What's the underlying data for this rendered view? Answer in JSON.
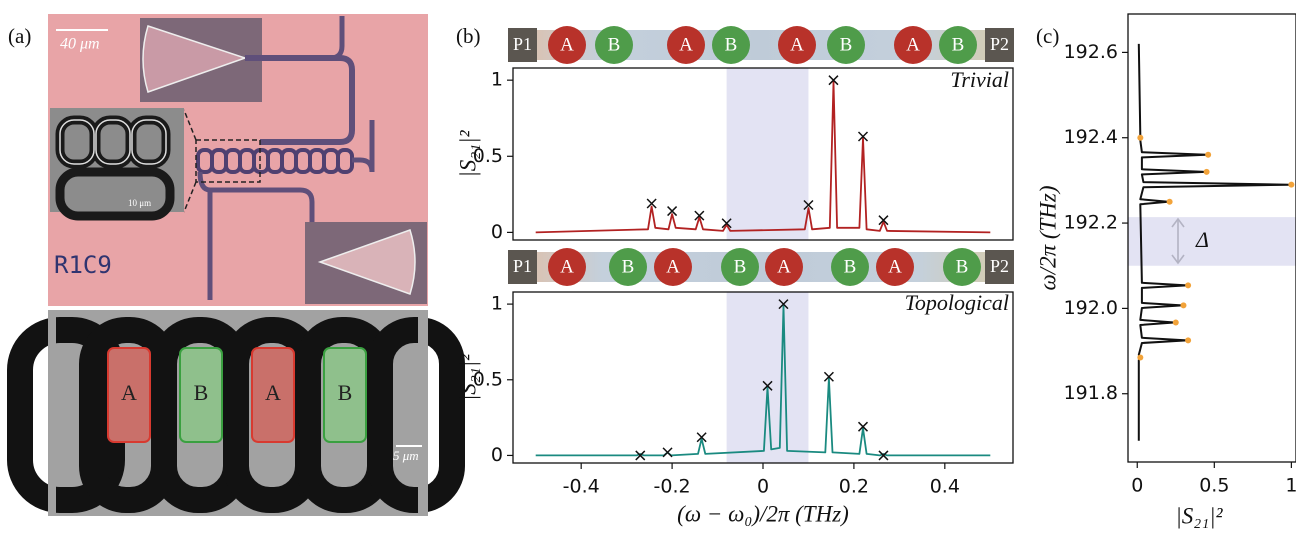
{
  "panel_labels": [
    "(a)",
    "(b)",
    "(c)"
  ],
  "micrograph": {
    "scale_bars": [
      "40 μm",
      "10 μm",
      "5 μm"
    ],
    "chip_label": "R1C9",
    "sites": [
      "A",
      "B",
      "A",
      "B"
    ]
  },
  "chains": [
    {
      "ports": [
        "P1",
        "P2"
      ],
      "sites": [
        "A",
        "B",
        "A",
        "B",
        "A",
        "B",
        "A",
        "B"
      ]
    },
    {
      "ports": [
        "P1",
        "P2"
      ],
      "sites": [
        "A",
        "B",
        "A",
        "B",
        "A",
        "B",
        "A",
        "B"
      ]
    }
  ],
  "chart_data": [
    {
      "type": "line",
      "annotation": "Trivial",
      "ylabel": "|S₂₁|²",
      "xlim": [
        -0.55,
        0.55
      ],
      "ylim": [
        -0.05,
        1.08
      ],
      "yticks": [
        0,
        0.5,
        1
      ],
      "shade_x": [
        -0.08,
        0.1
      ],
      "series": [
        {
          "color": "#b22222",
          "x": [
            -0.5,
            -0.253,
            -0.245,
            -0.237,
            -0.208,
            -0.2,
            -0.192,
            -0.148,
            -0.14,
            -0.132,
            -0.088,
            -0.08,
            -0.072,
            0.092,
            0.1,
            0.108,
            0.147,
            0.155,
            0.163,
            0.212,
            0.22,
            0.228,
            0.257,
            0.265,
            0.273,
            0.5
          ],
          "values": [
            0,
            0.02,
            0.17,
            0.03,
            0.02,
            0.12,
            0.03,
            0.02,
            0.1,
            0.02,
            0.01,
            0.05,
            0.01,
            0.02,
            0.16,
            0.02,
            0.03,
            0.99,
            0.03,
            0.03,
            0.62,
            0.02,
            0.01,
            0.07,
            0.01,
            0
          ]
        },
        {
          "type": "scatter",
          "marker": "x",
          "color": "#111111",
          "x": [
            -0.245,
            -0.2,
            -0.14,
            -0.08,
            0.1,
            0.155,
            0.22,
            0.265
          ],
          "values": [
            0.19,
            0.14,
            0.11,
            0.06,
            0.18,
            1.0,
            0.63,
            0.08
          ]
        }
      ]
    },
    {
      "type": "line",
      "annotation": "Topological",
      "ylabel": "|S₂₁|²",
      "xlabel": "(ω − ω₀)/2π (THz)",
      "xlim": [
        -0.55,
        0.55
      ],
      "ylim": [
        -0.05,
        1.08
      ],
      "xticks": [
        -0.4,
        -0.2,
        0,
        0.2,
        0.4
      ],
      "yticks": [
        0,
        0.5,
        1
      ],
      "shade_x": [
        -0.08,
        0.1
      ],
      "series": [
        {
          "color": "#1a8a80",
          "x": [
            -0.5,
            -0.278,
            -0.27,
            -0.262,
            -0.218,
            -0.21,
            -0.202,
            -0.143,
            -0.135,
            -0.127,
            0.002,
            0.01,
            0.018,
            0.037,
            0.045,
            0.053,
            0.137,
            0.145,
            0.153,
            0.212,
            0.22,
            0.228,
            0.257,
            0.265,
            0.273,
            0.5
          ],
          "values": [
            0,
            0,
            0.01,
            0,
            0,
            0.02,
            0,
            0.01,
            0.11,
            0.01,
            0.03,
            0.45,
            0.04,
            0.05,
            0.99,
            0.03,
            0.02,
            0.51,
            0.02,
            0.01,
            0.18,
            0.01,
            0,
            0.01,
            0,
            0
          ]
        },
        {
          "type": "scatter",
          "marker": "x",
          "color": "#111111",
          "x": [
            -0.27,
            -0.21,
            -0.135,
            0.01,
            0.045,
            0.145,
            0.22,
            0.265
          ],
          "values": [
            0,
            0.02,
            0.12,
            0.46,
            1.0,
            0.52,
            0.19,
            0
          ]
        }
      ]
    },
    {
      "type": "line",
      "orientation": "horizontal",
      "annotation": "Δ",
      "ylabel": "ω/2π (THz)",
      "xlabel": "|S₂₁|²",
      "xlim": [
        -0.06,
        1.03
      ],
      "ylim": [
        191.64,
        192.69
      ],
      "xticks": [
        0,
        0.5,
        1
      ],
      "yticks": [
        191.8,
        {
          "value": 192,
          "label": "192.0"
        },
        192.2,
        192.4,
        192.6
      ],
      "shade_y": [
        192.1,
        192.214
      ],
      "series": [
        {
          "color": "#111111",
          "y": [
            192.62,
            192.406,
            192.4,
            192.394,
            192.366,
            192.36,
            192.354,
            192.326,
            192.32,
            192.314,
            192.296,
            192.29,
            192.284,
            192.256,
            192.25,
            192.244,
            192.06,
            192.054,
            192.048,
            192.013,
            192.007,
            192.001,
            191.973,
            191.967,
            191.961,
            191.931,
            191.925,
            191.919,
            191.891,
            191.885,
            191.879,
            191.69
          ],
          "values": [
            0.01,
            0.02,
            0.03,
            0.02,
            0.03,
            0.45,
            0.03,
            0.03,
            0.44,
            0.03,
            0.04,
            0.99,
            0.04,
            0.02,
            0.2,
            0.02,
            0.03,
            0.32,
            0.03,
            0.03,
            0.29,
            0.03,
            0.02,
            0.24,
            0.02,
            0.03,
            0.32,
            0.03,
            0.01,
            0.02,
            0.01,
            0.01
          ]
        },
        {
          "type": "scatter",
          "marker": "dot",
          "color": "#f2a33a",
          "y": [
            192.4,
            192.36,
            192.32,
            192.29,
            192.25,
            192.054,
            192.007,
            191.967,
            191.925,
            191.885
          ],
          "values": [
            0.02,
            0.46,
            0.45,
            1.0,
            0.21,
            0.33,
            0.3,
            0.25,
            0.33,
            0.02
          ]
        }
      ]
    }
  ]
}
